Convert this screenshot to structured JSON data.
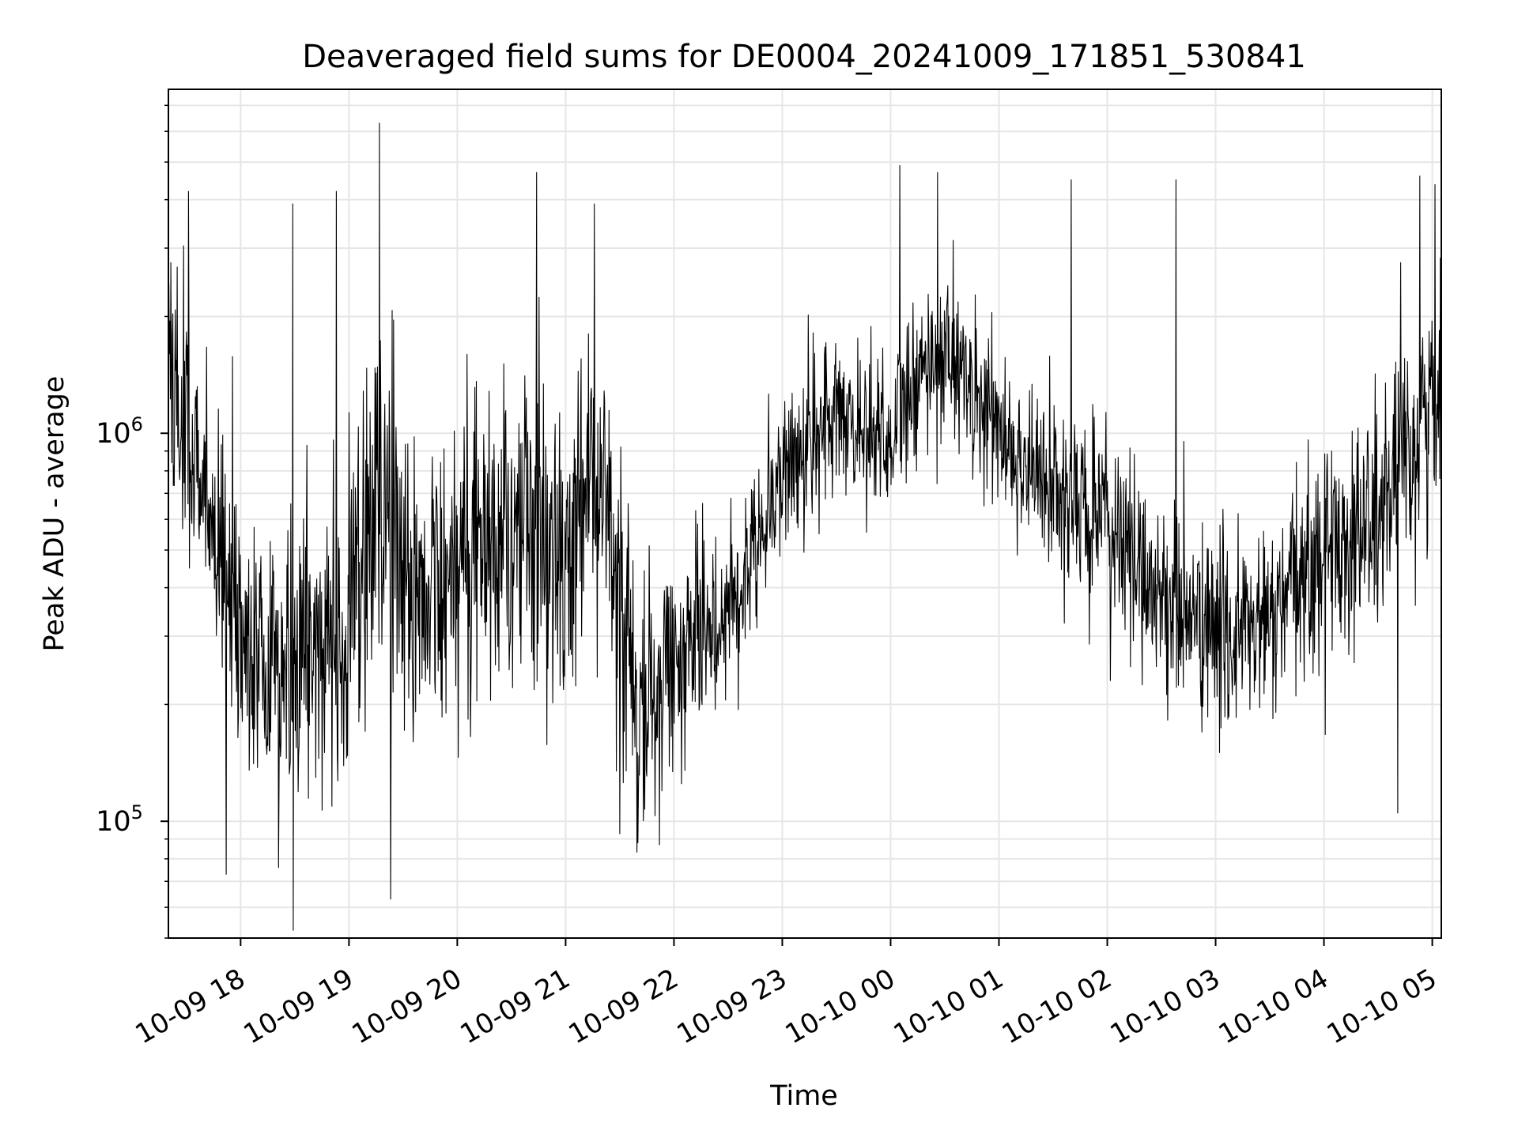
{
  "chart_data": {
    "type": "line",
    "title": "Deaveraged field sums for DE0004_20241009_171851_530841",
    "xlabel": "Time",
    "ylabel": "Peak ADU - average",
    "x_range": [
      "2024-10-09 17:20",
      "2024-10-10 05:05"
    ],
    "ylim": [
      50000,
      7700000
    ],
    "yscale": "log",
    "grid": true,
    "line_color": "#000000",
    "x_ticks": [
      "10-09 18",
      "10-09 19",
      "10-09 20",
      "10-09 21",
      "10-09 22",
      "10-09 23",
      "10-10 00",
      "10-10 01",
      "10-10 02",
      "10-10 03",
      "10-10 04",
      "10-10 05"
    ],
    "y_ticks": [
      {
        "base": "10",
        "exp": "5",
        "value": 100000
      },
      {
        "base": "10",
        "exp": "6",
        "value": 1000000
      }
    ],
    "series": [
      {
        "baseline_x": [
          "2024-10-09 17:20",
          "2024-10-09 17:35",
          "2024-10-09 17:50",
          "2024-10-09 18:00",
          "2024-10-09 18:30",
          "2024-10-09 19:00",
          "2024-10-09 19:20",
          "2024-10-09 19:40",
          "2024-10-09 20:00",
          "2024-10-09 20:30",
          "2024-10-09 21:00",
          "2024-10-09 21:20",
          "2024-10-09 21:40",
          "2024-10-09 22:00",
          "2024-10-09 22:30",
          "2024-10-09 23:00",
          "2024-10-09 23:30",
          "2024-10-10 00:00",
          "2024-10-10 00:30",
          "2024-10-10 01:00",
          "2024-10-10 01:30",
          "2024-10-10 02:00",
          "2024-10-10 02:30",
          "2024-10-10 03:00",
          "2024-10-10 03:30",
          "2024-10-10 04:00",
          "2024-10-10 04:30",
          "2024-10-10 05:00",
          "2024-10-10 05:05"
        ],
        "baseline_y": [
          1600000,
          900000,
          500000,
          280000,
          250000,
          320000,
          700000,
          350000,
          450000,
          600000,
          500000,
          700000,
          180000,
          260000,
          350000,
          800000,
          1100000,
          1000000,
          1700000,
          1000000,
          700000,
          580000,
          380000,
          300000,
          320000,
          500000,
          600000,
          1200000,
          1300000
        ],
        "spread_decades": [
          0.35,
          0.35,
          0.3,
          0.28,
          0.35,
          0.38,
          0.38,
          0.32,
          0.36,
          0.36,
          0.38,
          0.4,
          0.3,
          0.25,
          0.2,
          0.22,
          0.2,
          0.2,
          0.2,
          0.2,
          0.22,
          0.22,
          0.22,
          0.24,
          0.22,
          0.26,
          0.3,
          0.3,
          0.3
        ],
        "peaks": [
          {
            "x": "2024-10-09 17:31",
            "y": 4200000
          },
          {
            "x": "2024-10-09 18:29",
            "y": 3900000
          },
          {
            "x": "2024-10-09 18:53",
            "y": 4200000
          },
          {
            "x": "2024-10-09 19:17",
            "y": 6300000
          },
          {
            "x": "2024-10-09 19:23",
            "y": 63000
          },
          {
            "x": "2024-10-09 20:44",
            "y": 4700000
          },
          {
            "x": "2024-10-09 21:16",
            "y": 3900000
          },
          {
            "x": "2024-10-09 21:40",
            "y": 88000
          },
          {
            "x": "2024-10-10 00:05",
            "y": 4900000
          },
          {
            "x": "2024-10-10 00:26",
            "y": 4700000
          },
          {
            "x": "2024-10-10 01:40",
            "y": 4500000
          },
          {
            "x": "2024-10-10 02:38",
            "y": 4500000
          },
          {
            "x": "2024-10-10 04:53",
            "y": 4600000
          },
          {
            "x": "2024-10-09 17:52",
            "y": 73000
          },
          {
            "x": "2024-10-09 18:21",
            "y": 76000
          },
          {
            "x": "2024-10-10 04:41",
            "y": 105000
          }
        ]
      }
    ]
  }
}
